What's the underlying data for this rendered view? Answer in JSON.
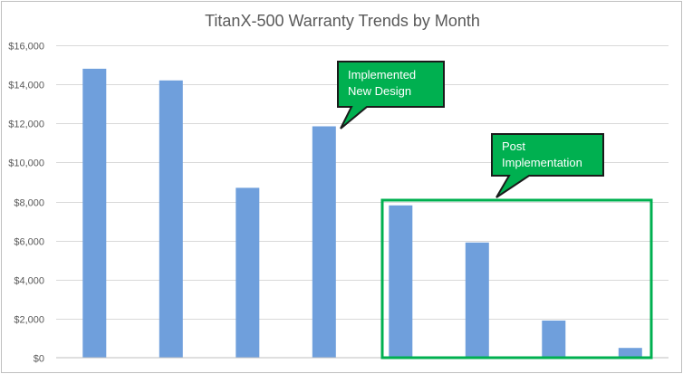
{
  "chart_data": {
    "type": "bar",
    "title": "TitanX-500 Warranty  Trends by Month",
    "xlabel": "",
    "ylabel": "",
    "categories": [
      "",
      "",
      "",
      "",
      "",
      "",
      "",
      ""
    ],
    "values": [
      14800,
      14200,
      8700,
      11850,
      7800,
      5900,
      1900,
      500
    ],
    "ylim": [
      0,
      16000
    ],
    "y_ticks": [
      "$0",
      "$2,000",
      "$4,000",
      "$6,000",
      "$8,000",
      "$10,000",
      "$12,000",
      "$14,000",
      "$16,000"
    ],
    "y_tick_values": [
      0,
      2000,
      4000,
      6000,
      8000,
      10000,
      12000,
      14000,
      16000
    ],
    "grid": true,
    "bar_color": "#6f9fdc",
    "annotations": [
      {
        "lines": [
          "Implemented",
          "New Design"
        ],
        "points_to_index": 3
      },
      {
        "lines": [
          "Post",
          "Implementation"
        ],
        "highlights_indices": [
          4,
          5,
          6,
          7
        ]
      }
    ],
    "annotation_color": "#00b050"
  }
}
